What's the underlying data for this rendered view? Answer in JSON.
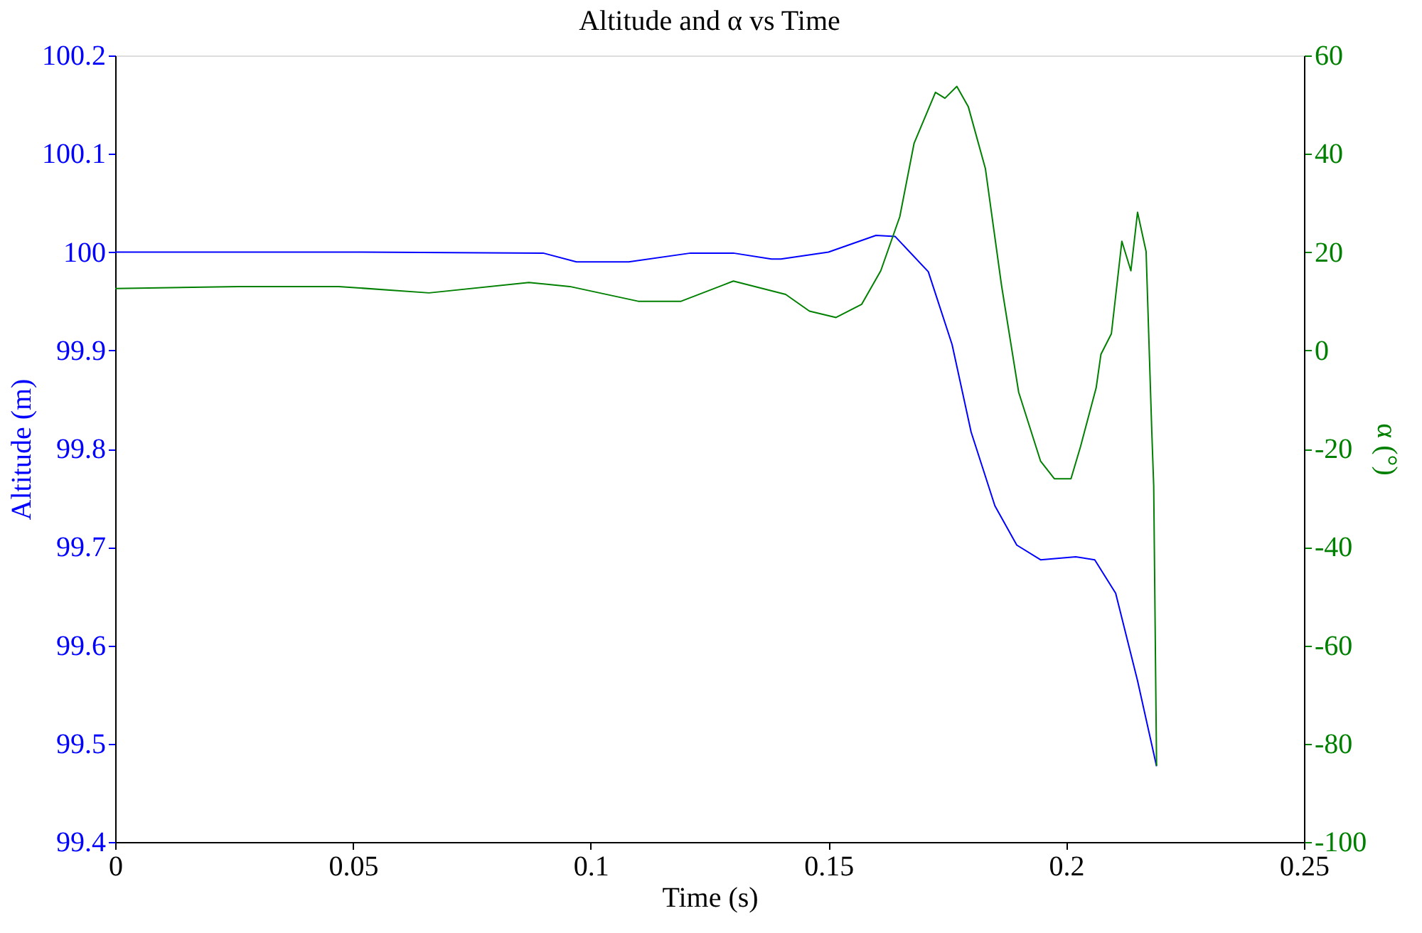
{
  "chart_data": {
    "type": "line",
    "title": "Altitude and α vs Time",
    "xlabel": "Time (s)",
    "ylabel": "Altitude (m)",
    "y2label": "α (°)",
    "xlim": [
      0,
      0.25
    ],
    "xticks": [
      0,
      0.05,
      0.1,
      0.15,
      0.2,
      0.25
    ],
    "ylim": [
      99.4,
      100.2
    ],
    "yticks": [
      99.4,
      99.5,
      99.6,
      99.7,
      99.8,
      99.9,
      100,
      100.1,
      100.2
    ],
    "y2lim": [
      -100,
      60
    ],
    "y2ticks": [
      -100,
      -80,
      -60,
      -40,
      -20,
      0,
      20,
      40,
      60
    ],
    "grid": false,
    "marker": "none",
    "line_style": "solid",
    "series": [
      {
        "color": "#0000ff",
        "x": [
          0,
          0.05,
          0.09,
          0.097,
          0.108,
          0.121,
          0.13,
          0.138,
          0.14,
          0.15,
          0.16,
          0.164,
          0.171,
          0.176,
          0.18,
          0.185,
          0.1896,
          0.1946,
          0.202,
          0.206,
          0.2104,
          0.215,
          0.219
        ],
        "values": [
          100.0,
          100.0,
          99.999,
          99.99,
          99.99,
          99.999,
          99.999,
          99.993,
          99.993,
          100.0,
          100.017,
          100.016,
          99.98,
          99.906,
          99.817,
          99.742,
          99.702,
          99.687,
          99.69,
          99.687,
          99.653,
          99.564,
          99.477
        ]
      },
      {
        "axis": "y2",
        "color": "#008000",
        "x": [
          0,
          0.026,
          0.047,
          0.066,
          0.087,
          0.0956,
          0.11,
          0.119,
          0.13,
          0.141,
          0.146,
          0.1516,
          0.157,
          0.161,
          0.165,
          0.168,
          0.1725,
          0.1745,
          0.177,
          0.1794,
          0.183,
          0.1864,
          0.19,
          0.1946,
          0.1975,
          0.201,
          0.203,
          0.2063,
          0.2073,
          0.2095,
          0.2117,
          0.2136,
          0.215,
          0.2168,
          0.218,
          0.2184,
          0.219
        ],
        "values": [
          12.6,
          13,
          13,
          11.7,
          13.8,
          13,
          10,
          10,
          14.1,
          11.4,
          8,
          6.7,
          9.4,
          16.2,
          27.2,
          42.1,
          52.5,
          51.3,
          53.7,
          49.6,
          37,
          13.2,
          -8.5,
          -22.5,
          -26.1,
          -26.1,
          -19.6,
          -7.6,
          -0.8,
          3.4,
          22.2,
          16.2,
          28.1,
          20.1,
          -16.6,
          -27.6,
          -84.5
        ]
      }
    ]
  }
}
